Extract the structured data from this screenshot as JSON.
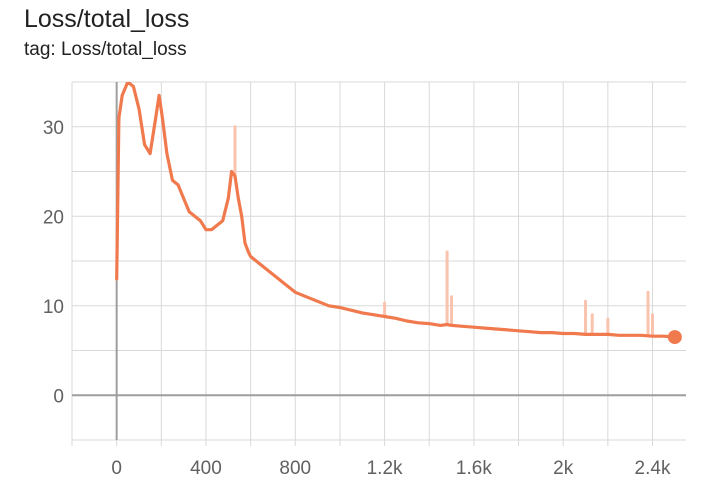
{
  "card": {
    "title": "Loss/total_loss",
    "tag_line": "tag: Loss/total_loss"
  },
  "colors": {
    "series": "#f07a4d",
    "series_raw": "#f9c3ad",
    "grid": "#d9d9d9",
    "axis": "#9e9e9e",
    "tick_text": "#616161"
  },
  "chart_data": {
    "type": "line",
    "title": "Loss/total_loss",
    "xlabel": "",
    "ylabel": "",
    "xlim": [
      -200,
      2550
    ],
    "ylim": [
      -5,
      35
    ],
    "x_ticks": [
      0,
      400,
      800,
      1200,
      1600,
      2000,
      2400
    ],
    "x_tick_labels": [
      "0",
      "400",
      "800",
      "1.2k",
      "1.6k",
      "2k",
      "2.4k"
    ],
    "y_ticks": [
      0,
      10,
      20,
      30
    ],
    "y_tick_labels": [
      "0",
      "10",
      "20",
      "30"
    ],
    "grid": true,
    "legend": "none",
    "series": [
      {
        "smoothed": true,
        "x": [
          0,
          10,
          25,
          50,
          75,
          100,
          125,
          150,
          175,
          190,
          205,
          225,
          250,
          275,
          300,
          325,
          350,
          375,
          400,
          425,
          450,
          475,
          500,
          515,
          530,
          545,
          560,
          575,
          590,
          600,
          625,
          650,
          700,
          750,
          800,
          850,
          900,
          950,
          1000,
          1050,
          1100,
          1150,
          1200,
          1250,
          1300,
          1350,
          1400,
          1450,
          1480,
          1500,
          1550,
          1600,
          1650,
          1700,
          1750,
          1800,
          1850,
          1900,
          1950,
          2000,
          2050,
          2100,
          2150,
          2200,
          2250,
          2300,
          2350,
          2400,
          2450,
          2500
        ],
        "y": [
          13,
          31,
          33.5,
          35,
          34.5,
          32,
          28,
          27,
          31,
          33.5,
          31,
          27,
          24,
          23.5,
          22,
          20.5,
          20,
          19.5,
          18.5,
          18.5,
          19,
          19.5,
          22,
          25,
          24.5,
          22,
          20,
          17,
          16,
          15.5,
          15,
          14.5,
          13.5,
          12.5,
          11.5,
          11,
          10.5,
          10,
          9.8,
          9.5,
          9.2,
          9,
          8.8,
          8.6,
          8.3,
          8.1,
          8,
          7.8,
          7.9,
          7.8,
          7.7,
          7.6,
          7.5,
          7.4,
          7.3,
          7.2,
          7.1,
          7,
          7,
          6.9,
          6.9,
          6.8,
          6.8,
          6.8,
          6.7,
          6.7,
          6.7,
          6.6,
          6.6,
          6.5
        ]
      }
    ],
    "raw_spikes": [
      {
        "x": 530,
        "y": 30
      },
      {
        "x": 1000,
        "y": 9.8
      },
      {
        "x": 1200,
        "y": 10.3
      },
      {
        "x": 1480,
        "y": 16
      },
      {
        "x": 1500,
        "y": 11
      },
      {
        "x": 2100,
        "y": 10.5
      },
      {
        "x": 2130,
        "y": 9
      },
      {
        "x": 2200,
        "y": 8.5
      },
      {
        "x": 2380,
        "y": 11.5
      },
      {
        "x": 2400,
        "y": 9
      }
    ]
  }
}
